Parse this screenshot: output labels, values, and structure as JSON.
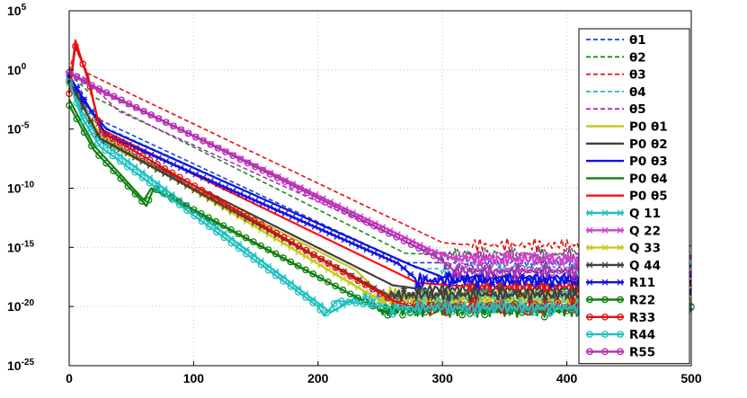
{
  "chart_data": {
    "type": "line",
    "title": "",
    "xlabel": "",
    "ylabel": "",
    "xlim": [
      0,
      500
    ],
    "ylim_log10": [
      -25,
      5
    ],
    "y_scale": "log",
    "grid": true,
    "legend_position": "top-right",
    "x_ticks": [
      {
        "value": 0,
        "label": "0"
      },
      {
        "value": 100,
        "label": "100"
      },
      {
        "value": 200,
        "label": "200"
      },
      {
        "value": 300,
        "label": "300"
      },
      {
        "value": 400,
        "label": "400"
      },
      {
        "value": 500,
        "label": "500"
      }
    ],
    "y_ticks": [
      {
        "exp": 5,
        "base": "10",
        "sup": "5"
      },
      {
        "exp": 0,
        "base": "10",
        "sup": "0"
      },
      {
        "exp": -5,
        "base": "10",
        "sup": "-5"
      },
      {
        "exp": -10,
        "base": "10",
        "sup": "-10"
      },
      {
        "exp": -15,
        "base": "10",
        "sup": "-15"
      },
      {
        "exp": -20,
        "base": "10",
        "sup": "-20"
      },
      {
        "exp": -25,
        "base": "10",
        "sup": "-25"
      }
    ],
    "series": [
      {
        "name": "θ1",
        "color": "#1f3fd6",
        "style": "dashed",
        "marker": "none",
        "points_log10": [
          [
            0,
            -0.2
          ],
          [
            5,
            -0.8
          ],
          [
            20,
            -4.0
          ],
          [
            270,
            -16.3
          ],
          [
            300,
            -16.3
          ],
          [
            500,
            -16.3
          ]
        ]
      },
      {
        "name": "θ2",
        "color": "#1f8a1f",
        "style": "dashed",
        "marker": "none",
        "points_log10": [
          [
            0,
            -0.3
          ],
          [
            5,
            -0.8
          ],
          [
            20,
            -2.3
          ],
          [
            270,
            -15.5
          ],
          [
            300,
            -15.6
          ],
          [
            500,
            -15.6
          ]
        ]
      },
      {
        "name": "θ3",
        "color": "#e01010",
        "style": "dashed",
        "marker": "none",
        "points_log10": [
          [
            0,
            -0.1
          ],
          [
            5,
            1.8
          ],
          [
            15,
            -0.3
          ],
          [
            300,
            -14.6
          ],
          [
            320,
            -14.8
          ],
          [
            500,
            -14.8
          ]
        ]
      },
      {
        "name": "θ4",
        "color": "#20b8c8",
        "style": "dashed",
        "marker": "none",
        "points_log10": [
          [
            0,
            -0.5
          ],
          [
            8,
            -2.8
          ],
          [
            30,
            -4.9
          ],
          [
            280,
            -16.8
          ],
          [
            300,
            -16.8
          ],
          [
            500,
            -16.8
          ]
        ]
      },
      {
        "name": "θ5",
        "color": "#c020c0",
        "style": "dashed",
        "marker": "none",
        "points_log10": [
          [
            0,
            -0.1
          ],
          [
            10,
            -0.5
          ],
          [
            40,
            -3.5
          ],
          [
            285,
            -15.2
          ],
          [
            310,
            -15.6
          ],
          [
            500,
            -15.6
          ]
        ]
      },
      {
        "name": "P0 θ1",
        "color": "#c8c820",
        "style": "solid",
        "marker": "none",
        "points_log10": [
          [
            0,
            -0.6
          ],
          [
            25,
            -6.0
          ],
          [
            230,
            -16.9
          ],
          [
            250,
            -18.9
          ],
          [
            500,
            -18.9
          ]
        ]
      },
      {
        "name": "P0 θ2",
        "color": "#404040",
        "style": "solid",
        "marker": "none",
        "points_log10": [
          [
            0,
            -0.6
          ],
          [
            25,
            -5.8
          ],
          [
            260,
            -18.2
          ],
          [
            280,
            -18.5
          ],
          [
            500,
            -18.5
          ]
        ]
      },
      {
        "name": "P0 θ3",
        "color": "#1010e0",
        "style": "solid",
        "marker": "none",
        "points_log10": [
          [
            0,
            -0.4
          ],
          [
            10,
            -2.5
          ],
          [
            30,
            -5.0
          ],
          [
            275,
            -16.5
          ],
          [
            300,
            -17.5
          ],
          [
            500,
            -17.5
          ]
        ]
      },
      {
        "name": "P0 θ4",
        "color": "#108010",
        "style": "solid",
        "marker": "none",
        "points_log10": [
          [
            0,
            -2.5
          ],
          [
            20,
            -6.4
          ],
          [
            60,
            -11.0
          ],
          [
            66,
            -10.0
          ],
          [
            250,
            -20.3
          ],
          [
            500,
            -20.3
          ]
        ]
      },
      {
        "name": "P0 θ5",
        "color": "#ff1010",
        "style": "solid",
        "marker": "none",
        "points_log10": [
          [
            0,
            -2.0
          ],
          [
            5,
            2.5
          ],
          [
            15,
            -0.8
          ],
          [
            25,
            -5.0
          ],
          [
            280,
            -18.0
          ],
          [
            320,
            -18.3
          ],
          [
            500,
            -18.3
          ]
        ]
      },
      {
        "name": "Q  11",
        "color": "#20c0c0",
        "style": "solid",
        "marker": "x",
        "points_log10": [
          [
            0,
            -0.5
          ],
          [
            10,
            -3.5
          ],
          [
            25,
            -6.0
          ],
          [
            200,
            -19.7
          ],
          [
            210,
            -20.5
          ],
          [
            230,
            -19.3
          ],
          [
            500,
            -19.3
          ]
        ]
      },
      {
        "name": "Q  22",
        "color": "#d040d0",
        "style": "solid",
        "marker": "x",
        "points_log10": [
          [
            0,
            -0.3
          ],
          [
            20,
            -1.5
          ],
          [
            290,
            -15.2
          ],
          [
            310,
            -16.0
          ],
          [
            500,
            -16.0
          ]
        ]
      },
      {
        "name": "Q  33",
        "color": "#c8c820",
        "style": "solid",
        "marker": "x",
        "points_log10": [
          [
            0,
            -1.2
          ],
          [
            25,
            -5.5
          ],
          [
            250,
            -19.5
          ],
          [
            500,
            -19.5
          ]
        ]
      },
      {
        "name": "Q  44",
        "color": "#404040",
        "style": "solid",
        "marker": "x",
        "points_log10": [
          [
            0,
            -1.0
          ],
          [
            25,
            -5.8
          ],
          [
            255,
            -19.0
          ],
          [
            500,
            -19.0
          ]
        ]
      },
      {
        "name": "R11",
        "color": "#1010e0",
        "style": "solid",
        "marker": "x",
        "points_log10": [
          [
            0,
            -0.5
          ],
          [
            30,
            -5.5
          ],
          [
            265,
            -16.4
          ],
          [
            280,
            -17.8
          ],
          [
            500,
            -17.8
          ]
        ]
      },
      {
        "name": "R22",
        "color": "#108010",
        "style": "solid",
        "marker": "o",
        "points_log10": [
          [
            0,
            -3.0
          ],
          [
            20,
            -6.8
          ],
          [
            55,
            -10.7
          ],
          [
            62,
            -11.5
          ],
          [
            68,
            -10.0
          ],
          [
            250,
            -20.3
          ],
          [
            500,
            -20.3
          ]
        ]
      },
      {
        "name": "R33",
        "color": "#e01010",
        "style": "solid",
        "marker": "o",
        "points_log10": [
          [
            0,
            -2.0
          ],
          [
            5,
            2.0
          ],
          [
            15,
            -0.5
          ],
          [
            25,
            -5.2
          ],
          [
            260,
            -19.5
          ],
          [
            275,
            -20.0
          ],
          [
            500,
            -20.0
          ]
        ]
      },
      {
        "name": "R44",
        "color": "#20c0c0",
        "style": "solid",
        "marker": "o",
        "points_log10": [
          [
            0,
            -1.0
          ],
          [
            10,
            -4.0
          ],
          [
            25,
            -6.5
          ],
          [
            200,
            -20.0
          ],
          [
            205,
            -20.8
          ],
          [
            215,
            -19.5
          ],
          [
            260,
            -20.1
          ],
          [
            500,
            -20.1
          ]
        ]
      },
      {
        "name": "R55",
        "color": "#b030b0",
        "style": "solid",
        "marker": "o",
        "points_log10": [
          [
            0,
            -0.2
          ],
          [
            20,
            -1.4
          ],
          [
            295,
            -15.8
          ],
          [
            310,
            -17.0
          ],
          [
            500,
            -17.0
          ]
        ]
      }
    ]
  }
}
